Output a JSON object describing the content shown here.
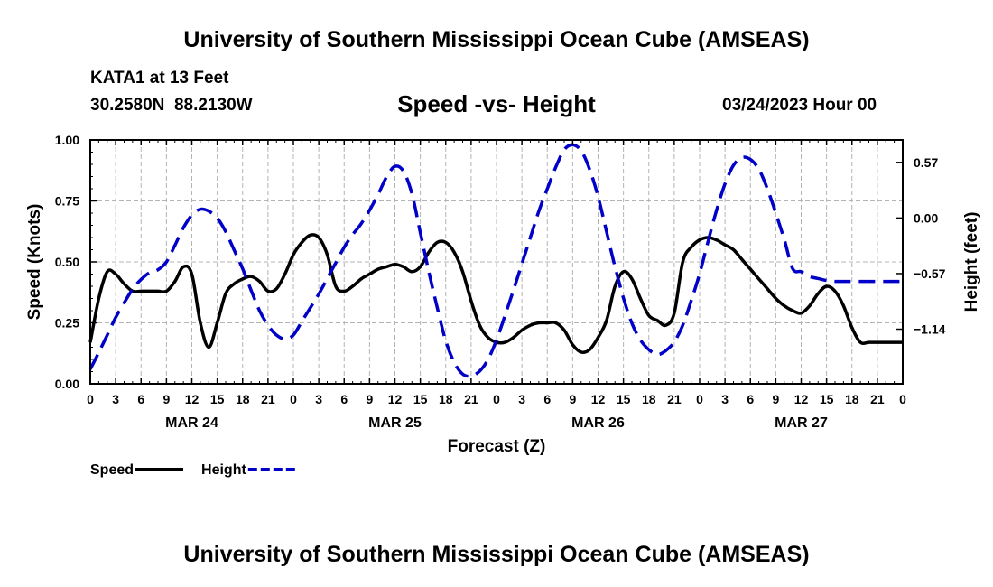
{
  "titles": {
    "top": "University of Southern Mississippi Ocean Cube (AMSEAS)",
    "bottom": "University of Southern Mississippi Ocean Cube (AMSEAS)"
  },
  "header": {
    "station": "KATA1 at 13 Feet",
    "coords": "30.2580N  88.2130W",
    "timestamp": "03/24/2023 Hour 00"
  },
  "chart_data": {
    "type": "line",
    "title": "Speed -vs- Height",
    "xlabel": "Forecast (Z)",
    "ylabel": "Speed (Knots)",
    "y2label": "Height (feet)",
    "xlim": [
      0,
      96
    ],
    "ylim": [
      0,
      1.0
    ],
    "y2lim": [
      -1.7,
      0.8
    ],
    "x_tick_labels": [
      "0",
      "3",
      "6",
      "9",
      "12",
      "15",
      "18",
      "21",
      "0",
      "3",
      "6",
      "9",
      "12",
      "15",
      "18",
      "21",
      "0",
      "3",
      "6",
      "9",
      "12",
      "15",
      "18",
      "21",
      "0",
      "3",
      "6",
      "9",
      "12",
      "15",
      "18",
      "21",
      "0"
    ],
    "y_tick_labels": [
      "0.00",
      "0.25",
      "0.50",
      "0.75",
      "1.00"
    ],
    "y_ticks": [
      0,
      0.25,
      0.5,
      0.75,
      1.0
    ],
    "y2_tick_labels": [
      "0.57",
      "0.00",
      "−0.57",
      "−1.14"
    ],
    "y2_ticks": [
      0.57,
      0,
      -0.57,
      -1.14
    ],
    "date_labels": [
      {
        "label": "MAR 24",
        "x": 12
      },
      {
        "label": "MAR 25",
        "x": 36
      },
      {
        "label": "MAR 26",
        "x": 60
      },
      {
        "label": "MAR 27",
        "x": 84
      }
    ],
    "grid": true,
    "series": [
      {
        "name": "Speed",
        "axis": "left",
        "color": "#000000",
        "dash": "solid",
        "x": [
          0,
          1,
          2,
          3,
          4,
          5,
          6,
          7,
          8,
          9,
          10,
          11,
          12,
          13,
          14,
          15,
          16,
          17,
          18,
          19,
          20,
          21,
          22,
          23,
          24,
          25,
          26,
          27,
          28,
          29,
          30,
          31,
          32,
          33,
          34,
          35,
          36,
          37,
          38,
          39,
          40,
          41,
          42,
          43,
          44,
          45,
          46,
          47,
          48,
          49,
          50,
          51,
          52,
          53,
          54,
          55,
          56,
          57,
          58,
          59,
          60,
          61,
          62,
          63,
          64,
          65,
          66,
          67,
          68,
          69,
          70,
          71,
          72,
          73,
          74,
          75,
          76,
          77,
          78,
          79,
          80,
          81,
          82,
          83,
          84,
          85,
          86,
          87,
          88,
          89,
          90,
          91,
          92,
          93,
          94,
          95,
          96
        ],
        "values": [
          0.17,
          0.35,
          0.46,
          0.45,
          0.41,
          0.38,
          0.38,
          0.38,
          0.38,
          0.38,
          0.42,
          0.48,
          0.45,
          0.25,
          0.15,
          0.25,
          0.37,
          0.41,
          0.43,
          0.44,
          0.42,
          0.38,
          0.39,
          0.45,
          0.53,
          0.58,
          0.61,
          0.6,
          0.53,
          0.4,
          0.38,
          0.4,
          0.43,
          0.45,
          0.47,
          0.48,
          0.49,
          0.48,
          0.46,
          0.48,
          0.54,
          0.58,
          0.58,
          0.54,
          0.46,
          0.34,
          0.24,
          0.19,
          0.17,
          0.17,
          0.19,
          0.22,
          0.24,
          0.25,
          0.25,
          0.25,
          0.22,
          0.16,
          0.13,
          0.14,
          0.19,
          0.26,
          0.4,
          0.46,
          0.43,
          0.35,
          0.28,
          0.26,
          0.24,
          0.29,
          0.5,
          0.56,
          0.59,
          0.6,
          0.59,
          0.57,
          0.55,
          0.51,
          0.47,
          0.43,
          0.39,
          0.35,
          0.32,
          0.3,
          0.29,
          0.32,
          0.37,
          0.4,
          0.38,
          0.32,
          0.23,
          0.17,
          0.17,
          0.17,
          0.17,
          0.17,
          0.17
        ]
      },
      {
        "name": "Height",
        "axis": "right",
        "color": "#0000c8",
        "dash": "dashed",
        "x": [
          0,
          1,
          2,
          3,
          4,
          5,
          6,
          7,
          8,
          9,
          10,
          11,
          12,
          13,
          14,
          15,
          16,
          17,
          18,
          19,
          20,
          21,
          22,
          23,
          24,
          25,
          26,
          27,
          28,
          29,
          30,
          31,
          32,
          33,
          34,
          35,
          36,
          37,
          38,
          39,
          40,
          41,
          42,
          43,
          44,
          45,
          46,
          47,
          48,
          49,
          50,
          51,
          52,
          53,
          54,
          55,
          56,
          57,
          58,
          59,
          60,
          61,
          62,
          63,
          64,
          65,
          66,
          67,
          68,
          69,
          70,
          71,
          72,
          73,
          74,
          75,
          76,
          77,
          78,
          79,
          80,
          81,
          82,
          83,
          84,
          85,
          86,
          87,
          88,
          89,
          90,
          91,
          92,
          93,
          94,
          95,
          96
        ],
        "values": [
          -1.55,
          -1.38,
          -1.2,
          -1.02,
          -0.87,
          -0.73,
          -0.63,
          -0.56,
          -0.53,
          -0.45,
          -0.28,
          -0.1,
          0.03,
          0.09,
          0.07,
          0.0,
          -0.14,
          -0.33,
          -0.52,
          -0.74,
          -0.95,
          -1.1,
          -1.2,
          -1.24,
          -1.2,
          -1.06,
          -0.92,
          -0.78,
          -0.62,
          -0.46,
          -0.3,
          -0.17,
          -0.06,
          0.08,
          0.24,
          0.42,
          0.53,
          0.48,
          0.25,
          -0.15,
          -0.55,
          -0.92,
          -1.26,
          -1.48,
          -1.6,
          -1.62,
          -1.57,
          -1.45,
          -1.25,
          -1.0,
          -0.74,
          -0.47,
          -0.2,
          0.07,
          0.3,
          0.52,
          0.7,
          0.75,
          0.69,
          0.5,
          0.22,
          -0.14,
          -0.5,
          -0.82,
          -1.08,
          -1.25,
          -1.35,
          -1.4,
          -1.36,
          -1.27,
          -1.1,
          -0.85,
          -0.57,
          -0.24,
          0.08,
          0.35,
          0.54,
          0.62,
          0.6,
          0.5,
          0.3,
          0.05,
          -0.22,
          -0.52,
          -0.55,
          -0.6,
          -0.62,
          -0.64,
          -0.65,
          -0.65,
          -0.65,
          -0.65,
          -0.65,
          -0.65,
          -0.65,
          -0.65,
          -0.65
        ]
      }
    ],
    "legend": [
      {
        "label": "Speed",
        "color": "#000000",
        "dash": "solid"
      },
      {
        "label": "Height",
        "color": "#0000c8",
        "dash": "dashed"
      }
    ]
  }
}
